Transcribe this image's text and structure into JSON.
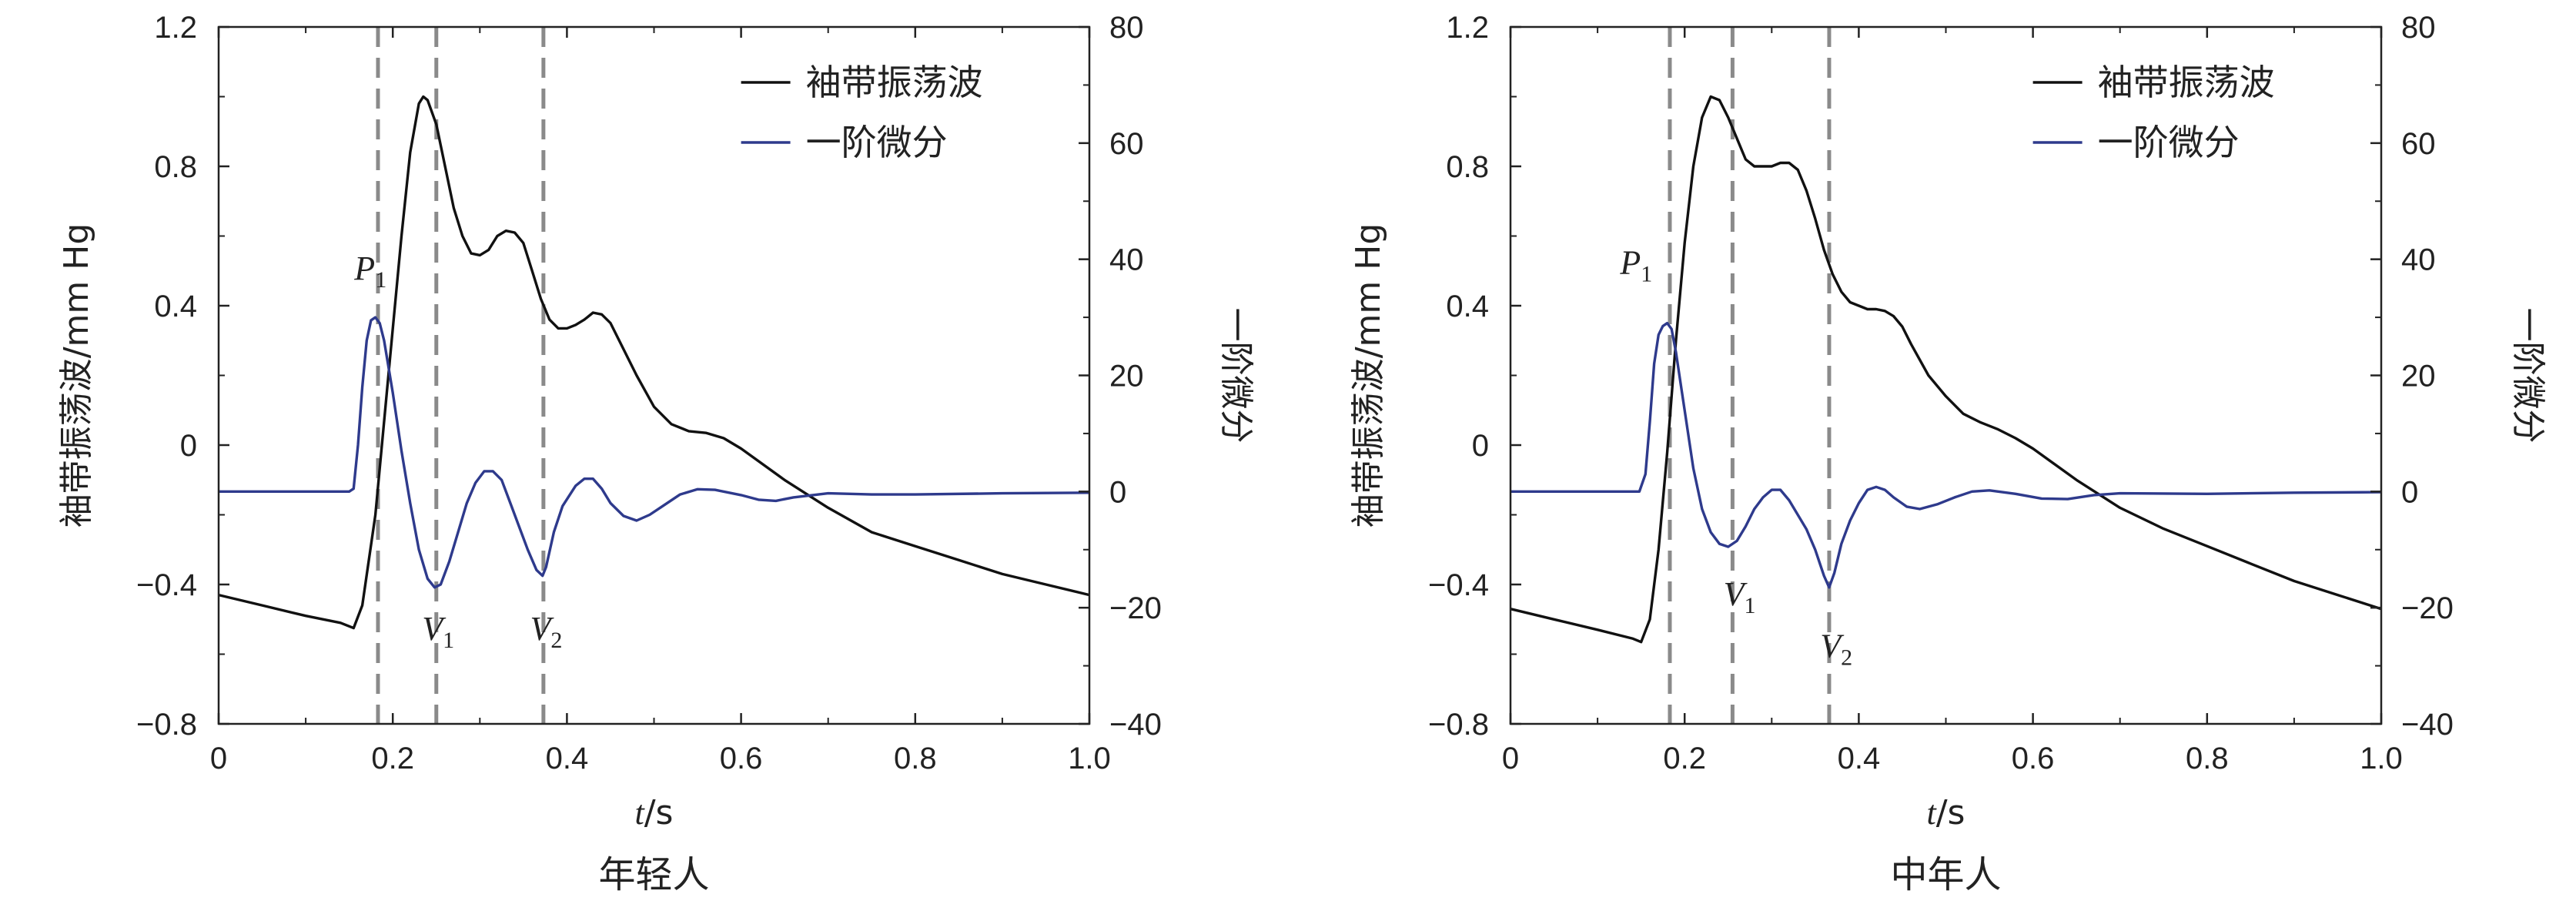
{
  "chart_data": [
    {
      "type": "line",
      "caption": "年轻人",
      "xlabel_var": "t",
      "xlabel_unit": "/s",
      "ylabel": "袖带振荡波/mm Hg",
      "y2label": "一阶微分",
      "xlim": [
        0,
        1.0
      ],
      "ylim": [
        -0.8,
        1.2
      ],
      "y2lim": [
        -40,
        80
      ],
      "x_ticks": [
        "0",
        "0.2",
        "0.4",
        "0.6",
        "0.8",
        "1.0"
      ],
      "y_ticks": [
        "−0.8",
        "−0.4",
        "0",
        "0.4",
        "0.8",
        "1.2"
      ],
      "y2_ticks": [
        "−40",
        "−20",
        "0",
        "20",
        "40",
        "60",
        "80"
      ],
      "legend_position": "top-right",
      "vlines": [
        0.183,
        0.25,
        0.373
      ],
      "markers": [
        {
          "letter": "P",
          "sub": "1",
          "x": 0.2,
          "y2": 32
        },
        {
          "letter": "V",
          "sub": "1",
          "x": 0.246,
          "y2": -16
        },
        {
          "letter": "V",
          "sub": "2",
          "x": 0.37,
          "y2": -16
        }
      ],
      "series": [
        {
          "name": "袖带振荡波",
          "axis": "left",
          "color": "#111111",
          "points": [
            [
              0,
              -0.43
            ],
            [
              0.05,
              -0.46
            ],
            [
              0.1,
              -0.49
            ],
            [
              0.14,
              -0.51
            ],
            [
              0.155,
              -0.525
            ],
            [
              0.165,
              -0.46
            ],
            [
              0.18,
              -0.2
            ],
            [
              0.195,
              0.2
            ],
            [
              0.21,
              0.6
            ],
            [
              0.22,
              0.84
            ],
            [
              0.23,
              0.98
            ],
            [
              0.235,
              1.0
            ],
            [
              0.24,
              0.99
            ],
            [
              0.25,
              0.92
            ],
            [
              0.26,
              0.8
            ],
            [
              0.27,
              0.68
            ],
            [
              0.28,
              0.6
            ],
            [
              0.29,
              0.55
            ],
            [
              0.3,
              0.545
            ],
            [
              0.31,
              0.56
            ],
            [
              0.32,
              0.6
            ],
            [
              0.33,
              0.615
            ],
            [
              0.34,
              0.61
            ],
            [
              0.35,
              0.58
            ],
            [
              0.36,
              0.5
            ],
            [
              0.37,
              0.42
            ],
            [
              0.38,
              0.36
            ],
            [
              0.39,
              0.335
            ],
            [
              0.4,
              0.335
            ],
            [
              0.41,
              0.345
            ],
            [
              0.42,
              0.36
            ],
            [
              0.43,
              0.38
            ],
            [
              0.44,
              0.375
            ],
            [
              0.45,
              0.35
            ],
            [
              0.46,
              0.3
            ],
            [
              0.48,
              0.2
            ],
            [
              0.5,
              0.11
            ],
            [
              0.52,
              0.06
            ],
            [
              0.54,
              0.04
            ],
            [
              0.56,
              0.035
            ],
            [
              0.58,
              0.02
            ],
            [
              0.6,
              -0.01
            ],
            [
              0.65,
              -0.1
            ],
            [
              0.7,
              -0.18
            ],
            [
              0.75,
              -0.25
            ],
            [
              0.8,
              -0.29
            ],
            [
              0.85,
              -0.33
            ],
            [
              0.9,
              -0.37
            ],
            [
              0.95,
              -0.4
            ],
            [
              1.0,
              -0.43
            ]
          ]
        },
        {
          "name": "一阶微分",
          "axis": "right",
          "color": "#2e3a8c",
          "points": [
            [
              0,
              0
            ],
            [
              0.1,
              0
            ],
            [
              0.15,
              0
            ],
            [
              0.155,
              0.5
            ],
            [
              0.16,
              8
            ],
            [
              0.165,
              18
            ],
            [
              0.17,
              26
            ],
            [
              0.175,
              29.5
            ],
            [
              0.18,
              30
            ],
            [
              0.185,
              29
            ],
            [
              0.19,
              26
            ],
            [
              0.2,
              17
            ],
            [
              0.21,
              7
            ],
            [
              0.22,
              -2
            ],
            [
              0.23,
              -10
            ],
            [
              0.24,
              -15
            ],
            [
              0.248,
              -16.5
            ],
            [
              0.255,
              -16
            ],
            [
              0.265,
              -12
            ],
            [
              0.275,
              -7
            ],
            [
              0.285,
              -2
            ],
            [
              0.295,
              1.5
            ],
            [
              0.305,
              3.5
            ],
            [
              0.315,
              3.5
            ],
            [
              0.325,
              2
            ],
            [
              0.335,
              -2
            ],
            [
              0.345,
              -6
            ],
            [
              0.355,
              -10
            ],
            [
              0.365,
              -13.5
            ],
            [
              0.372,
              -14.5
            ],
            [
              0.376,
              -13
            ],
            [
              0.385,
              -7
            ],
            [
              0.395,
              -2.5
            ],
            [
              0.41,
              1
            ],
            [
              0.42,
              2.2
            ],
            [
              0.43,
              2.2
            ],
            [
              0.44,
              0.5
            ],
            [
              0.45,
              -2
            ],
            [
              0.465,
              -4.2
            ],
            [
              0.48,
              -5
            ],
            [
              0.495,
              -4
            ],
            [
              0.51,
              -2.5
            ],
            [
              0.53,
              -0.5
            ],
            [
              0.55,
              0.4
            ],
            [
              0.57,
              0.3
            ],
            [
              0.6,
              -0.6
            ],
            [
              0.62,
              -1.4
            ],
            [
              0.64,
              -1.6
            ],
            [
              0.66,
              -1
            ],
            [
              0.7,
              -0.3
            ],
            [
              0.75,
              -0.5
            ],
            [
              0.8,
              -0.5
            ],
            [
              0.9,
              -0.3
            ],
            [
              1.0,
              -0.2
            ]
          ]
        }
      ]
    },
    {
      "type": "line",
      "caption": "中年人",
      "xlabel_var": "t",
      "xlabel_unit": "/s",
      "ylabel": "袖带振荡波/mm Hg",
      "y2label": "一阶微分",
      "xlim": [
        0,
        1.0
      ],
      "ylim": [
        -0.8,
        1.2
      ],
      "y2lim": [
        -40,
        80
      ],
      "x_ticks": [
        "0",
        "0.2",
        "0.4",
        "0.6",
        "0.8",
        "1.0"
      ],
      "y_ticks": [
        "−0.8",
        "−0.4",
        "0",
        "0.4",
        "0.8",
        "1.2"
      ],
      "y2_ticks": [
        "−40",
        "−20",
        "0",
        "20",
        "40",
        "60",
        "80"
      ],
      "legend_position": "top-right",
      "vlines": [
        0.183,
        0.255,
        0.366
      ],
      "markers": [
        {
          "letter": "P",
          "sub": "1",
          "x": 0.17,
          "y2": 33
        },
        {
          "letter": "V",
          "sub": "1",
          "x": 0.257,
          "y2": -10
        },
        {
          "letter": "V",
          "sub": "2",
          "x": 0.368,
          "y2": -19
        }
      ],
      "series": [
        {
          "name": "袖带振荡波",
          "axis": "left",
          "color": "#111111",
          "points": [
            [
              0,
              -0.47
            ],
            [
              0.05,
              -0.5
            ],
            [
              0.1,
              -0.53
            ],
            [
              0.14,
              -0.555
            ],
            [
              0.15,
              -0.565
            ],
            [
              0.16,
              -0.5
            ],
            [
              0.17,
              -0.3
            ],
            [
              0.18,
              -0.02
            ],
            [
              0.19,
              0.3
            ],
            [
              0.2,
              0.58
            ],
            [
              0.21,
              0.8
            ],
            [
              0.22,
              0.94
            ],
            [
              0.23,
              1.0
            ],
            [
              0.24,
              0.99
            ],
            [
              0.25,
              0.94
            ],
            [
              0.26,
              0.88
            ],
            [
              0.27,
              0.82
            ],
            [
              0.28,
              0.8
            ],
            [
              0.29,
              0.8
            ],
            [
              0.3,
              0.8
            ],
            [
              0.31,
              0.81
            ],
            [
              0.32,
              0.81
            ],
            [
              0.33,
              0.79
            ],
            [
              0.34,
              0.73
            ],
            [
              0.35,
              0.65
            ],
            [
              0.36,
              0.56
            ],
            [
              0.37,
              0.49
            ],
            [
              0.38,
              0.44
            ],
            [
              0.39,
              0.41
            ],
            [
              0.4,
              0.4
            ],
            [
              0.41,
              0.39
            ],
            [
              0.42,
              0.39
            ],
            [
              0.43,
              0.385
            ],
            [
              0.44,
              0.37
            ],
            [
              0.45,
              0.34
            ],
            [
              0.46,
              0.29
            ],
            [
              0.48,
              0.2
            ],
            [
              0.5,
              0.14
            ],
            [
              0.52,
              0.09
            ],
            [
              0.54,
              0.065
            ],
            [
              0.56,
              0.045
            ],
            [
              0.58,
              0.02
            ],
            [
              0.6,
              -0.01
            ],
            [
              0.65,
              -0.1
            ],
            [
              0.7,
              -0.18
            ],
            [
              0.75,
              -0.24
            ],
            [
              0.8,
              -0.29
            ],
            [
              0.85,
              -0.34
            ],
            [
              0.9,
              -0.39
            ],
            [
              0.95,
              -0.43
            ],
            [
              1.0,
              -0.47
            ]
          ]
        },
        {
          "name": "一阶微分",
          "axis": "right",
          "color": "#2e3a8c",
          "points": [
            [
              0,
              0
            ],
            [
              0.1,
              0
            ],
            [
              0.148,
              0
            ],
            [
              0.155,
              3
            ],
            [
              0.16,
              12
            ],
            [
              0.165,
              22
            ],
            [
              0.17,
              27
            ],
            [
              0.175,
              28.5
            ],
            [
              0.18,
              29
            ],
            [
              0.185,
              28
            ],
            [
              0.19,
              24
            ],
            [
              0.2,
              14
            ],
            [
              0.21,
              4
            ],
            [
              0.22,
              -3
            ],
            [
              0.23,
              -7
            ],
            [
              0.24,
              -9
            ],
            [
              0.25,
              -9.5
            ],
            [
              0.26,
              -8.5
            ],
            [
              0.27,
              -6
            ],
            [
              0.28,
              -3
            ],
            [
              0.29,
              -1
            ],
            [
              0.3,
              0.3
            ],
            [
              0.31,
              0.3
            ],
            [
              0.32,
              -1.5
            ],
            [
              0.33,
              -4
            ],
            [
              0.34,
              -6.5
            ],
            [
              0.35,
              -10
            ],
            [
              0.36,
              -14.5
            ],
            [
              0.366,
              -16.5
            ],
            [
              0.372,
              -14
            ],
            [
              0.38,
              -9
            ],
            [
              0.39,
              -5
            ],
            [
              0.4,
              -2
            ],
            [
              0.41,
              0.3
            ],
            [
              0.42,
              0.8
            ],
            [
              0.43,
              0.3
            ],
            [
              0.44,
              -1
            ],
            [
              0.455,
              -2.6
            ],
            [
              0.47,
              -3
            ],
            [
              0.49,
              -2.2
            ],
            [
              0.51,
              -1
            ],
            [
              0.53,
              0
            ],
            [
              0.55,
              0.2
            ],
            [
              0.58,
              -0.4
            ],
            [
              0.61,
              -1.2
            ],
            [
              0.64,
              -1.3
            ],
            [
              0.67,
              -0.6
            ],
            [
              0.7,
              -0.3
            ],
            [
              0.8,
              -0.4
            ],
            [
              0.9,
              -0.2
            ],
            [
              1.0,
              -0.1
            ]
          ]
        }
      ]
    }
  ]
}
